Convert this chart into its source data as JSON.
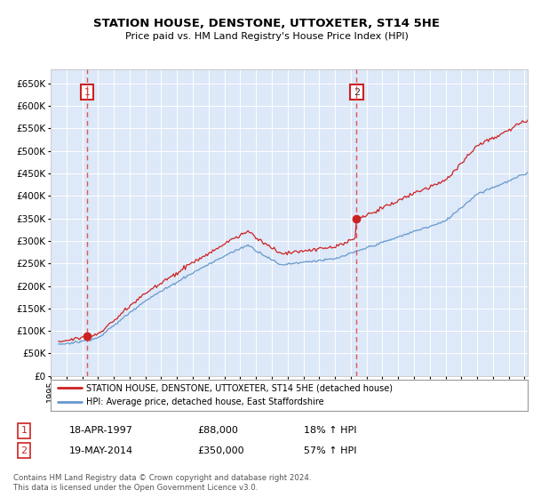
{
  "title": "STATION HOUSE, DENSTONE, UTTOXETER, ST14 5HE",
  "subtitle": "Price paid vs. HM Land Registry's House Price Index (HPI)",
  "legend_line1": "STATION HOUSE, DENSTONE, UTTOXETER, ST14 5HE (detached house)",
  "legend_line2": "HPI: Average price, detached house, East Staffordshire",
  "transaction1_date": "18-APR-1997",
  "transaction1_price": "£88,000",
  "transaction1_hpi": "18% ↑ HPI",
  "transaction2_date": "19-MAY-2014",
  "transaction2_price": "£350,000",
  "transaction2_hpi": "57% ↑ HPI",
  "footer": "Contains HM Land Registry data © Crown copyright and database right 2024.\nThis data is licensed under the Open Government Licence v3.0.",
  "ylim": [
    0,
    680000
  ],
  "yticks": [
    0,
    50000,
    100000,
    150000,
    200000,
    250000,
    300000,
    350000,
    400000,
    450000,
    500000,
    550000,
    600000,
    650000
  ],
  "plot_bg": "#dde8f8",
  "grid_color": "#ffffff",
  "fig_bg": "#ffffff",
  "red_line_color": "#cc2222",
  "blue_line_color": "#6699cc",
  "vline_color": "#dd4444",
  "marker1_x": 1997.3,
  "marker1_y": 88000,
  "marker2_x": 2014.37,
  "marker2_y": 350000,
  "xmin": 1995.5,
  "xmax": 2025.2
}
